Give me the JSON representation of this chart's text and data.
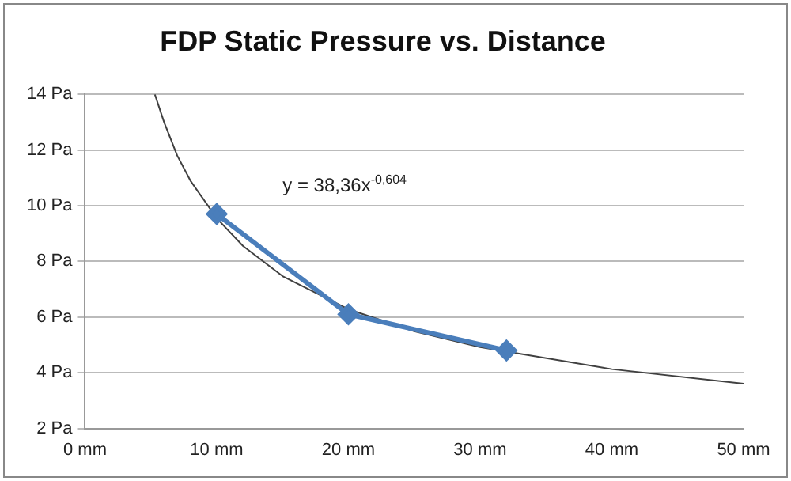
{
  "chart_data": {
    "type": "line",
    "title": "FDP Static Pressure vs. Distance",
    "series": [
      {
        "color": "#4a7ebb",
        "x": [
          10,
          20,
          32
        ],
        "values": [
          9.7,
          6.1,
          4.8
        ],
        "marker": "diamond"
      },
      {
        "color": "#404040",
        "x": [
          5.3,
          6,
          7,
          8,
          10,
          12,
          15,
          20,
          25,
          30,
          40,
          50
        ],
        "values": [
          14.0,
          13.0,
          11.8,
          10.9,
          9.55,
          8.55,
          7.47,
          6.28,
          5.49,
          4.92,
          4.13,
          3.61
        ],
        "marker": "none"
      }
    ],
    "xlim": [
      0,
      50
    ],
    "xticks": [
      {
        "value": 0,
        "label": "0 mm"
      },
      {
        "value": 10,
        "label": "10 mm"
      },
      {
        "value": 20,
        "label": "20 mm"
      },
      {
        "value": 30,
        "label": "30 mm"
      },
      {
        "value": 40,
        "label": "40 mm"
      },
      {
        "value": 50,
        "label": "50 mm"
      }
    ],
    "ylim": [
      2,
      14
    ],
    "yticks": [
      {
        "value": 2,
        "label": "2 Pa"
      },
      {
        "value": 4,
        "label": "4 Pa"
      },
      {
        "value": 6,
        "label": "6 Pa"
      },
      {
        "value": 8,
        "label": "8 Pa"
      },
      {
        "value": 10,
        "label": "10 Pa"
      },
      {
        "value": 12,
        "label": "12 Pa"
      },
      {
        "value": 14,
        "label": "14 Pa"
      }
    ],
    "grid": "y",
    "legend": false,
    "annotations": [
      "y = 38,36x$^{-0,604}$"
    ]
  }
}
